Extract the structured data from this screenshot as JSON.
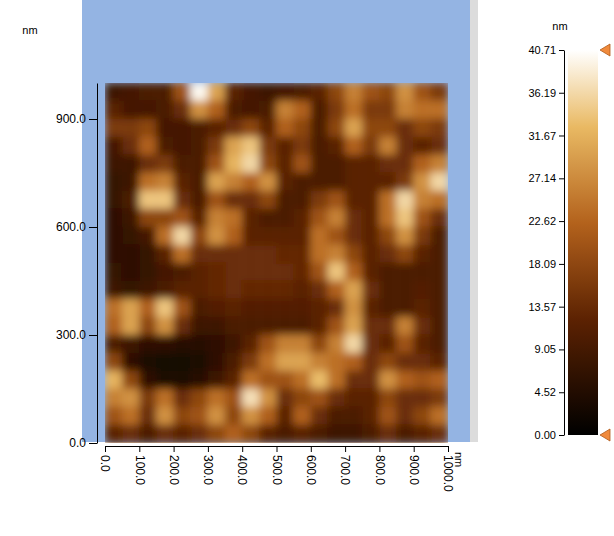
{
  "chart_data": {
    "type": "heatmap",
    "x_label": "nm",
    "y_label": "nm",
    "xlim": [
      0,
      1000
    ],
    "ylim": [
      0,
      1000
    ],
    "xticks": [
      {
        "value": 0,
        "label": "0.0"
      },
      {
        "value": 100,
        "label": "100.0"
      },
      {
        "value": 200,
        "label": "200.0"
      },
      {
        "value": 300,
        "label": "300.0"
      },
      {
        "value": 400,
        "label": "400.0"
      },
      {
        "value": 500,
        "label": "500.0"
      },
      {
        "value": 600,
        "label": "600.0"
      },
      {
        "value": 700,
        "label": "700.0"
      },
      {
        "value": 800,
        "label": "800.0"
      },
      {
        "value": 900,
        "label": "900.0"
      },
      {
        "value": 1000,
        "label": "1000.0"
      }
    ],
    "yticks": [
      {
        "value": 0,
        "label": "0.0"
      },
      {
        "value": 300,
        "label": "300.0"
      },
      {
        "value": 600,
        "label": "600.0"
      },
      {
        "value": 900,
        "label": "900.0"
      }
    ],
    "x": [
      25,
      75,
      125,
      175,
      225,
      275,
      325,
      375,
      425,
      475,
      525,
      575,
      625,
      675,
      725,
      775,
      825,
      875,
      925,
      975
    ],
    "y": [
      975,
      925,
      875,
      825,
      775,
      725,
      675,
      625,
      575,
      525,
      475,
      425,
      375,
      325,
      275,
      225,
      175,
      125,
      75,
      25
    ],
    "z": [
      [
        8,
        9,
        10,
        10,
        20,
        40,
        30,
        12,
        9,
        8,
        9,
        10,
        12,
        18,
        26,
        20,
        18,
        28,
        20,
        16
      ],
      [
        12,
        9,
        9,
        10,
        14,
        28,
        22,
        10,
        9,
        10,
        26,
        22,
        10,
        16,
        24,
        16,
        16,
        26,
        24,
        24
      ],
      [
        16,
        16,
        18,
        9,
        9,
        10,
        12,
        14,
        18,
        12,
        22,
        18,
        10,
        18,
        30,
        18,
        18,
        14,
        18,
        16
      ],
      [
        9,
        14,
        22,
        10,
        9,
        10,
        16,
        30,
        34,
        16,
        12,
        16,
        10,
        12,
        22,
        16,
        26,
        14,
        12,
        14
      ],
      [
        8,
        8,
        14,
        16,
        10,
        10,
        20,
        32,
        36,
        18,
        12,
        20,
        10,
        10,
        12,
        12,
        14,
        14,
        22,
        26
      ],
      [
        7,
        8,
        24,
        26,
        12,
        10,
        30,
        26,
        22,
        28,
        12,
        10,
        10,
        10,
        12,
        12,
        12,
        16,
        28,
        36
      ],
      [
        7,
        10,
        34,
        34,
        14,
        10,
        20,
        14,
        14,
        18,
        10,
        10,
        16,
        20,
        12,
        12,
        24,
        36,
        26,
        24
      ],
      [
        6,
        8,
        18,
        18,
        20,
        12,
        26,
        24,
        12,
        10,
        10,
        12,
        20,
        26,
        14,
        12,
        24,
        34,
        20,
        14
      ],
      [
        6,
        7,
        9,
        24,
        36,
        18,
        28,
        22,
        12,
        12,
        12,
        12,
        24,
        20,
        14,
        12,
        18,
        28,
        16,
        10
      ],
      [
        6,
        6,
        7,
        12,
        24,
        14,
        14,
        14,
        14,
        14,
        13,
        13,
        24,
        26,
        18,
        12,
        14,
        18,
        12,
        10
      ],
      [
        7,
        6,
        7,
        9,
        10,
        12,
        13,
        14,
        14,
        14,
        14,
        13,
        20,
        34,
        22,
        12,
        10,
        10,
        10,
        10
      ],
      [
        8,
        7,
        8,
        10,
        12,
        12,
        13,
        14,
        13,
        13,
        13,
        12,
        14,
        22,
        30,
        14,
        10,
        10,
        11,
        10
      ],
      [
        24,
        30,
        22,
        34,
        20,
        10,
        11,
        12,
        11,
        11,
        11,
        11,
        12,
        14,
        28,
        12,
        10,
        10,
        12,
        10
      ],
      [
        22,
        30,
        18,
        28,
        14,
        8,
        8,
        10,
        10,
        10,
        10,
        10,
        12,
        20,
        30,
        14,
        14,
        26,
        14,
        10
      ],
      [
        10,
        8,
        6,
        6,
        5,
        5,
        6,
        8,
        12,
        20,
        26,
        26,
        18,
        26,
        36,
        14,
        12,
        20,
        12,
        10
      ],
      [
        18,
        6,
        4,
        3,
        3,
        4,
        6,
        10,
        16,
        24,
        30,
        30,
        26,
        24,
        22,
        14,
        18,
        14,
        14,
        12
      ],
      [
        32,
        18,
        6,
        4,
        4,
        5,
        8,
        12,
        24,
        20,
        20,
        24,
        33,
        24,
        14,
        14,
        28,
        22,
        20,
        22
      ],
      [
        26,
        28,
        16,
        24,
        14,
        18,
        24,
        20,
        37,
        28,
        14,
        18,
        20,
        14,
        12,
        12,
        18,
        14,
        14,
        16
      ],
      [
        20,
        24,
        14,
        28,
        18,
        20,
        28,
        18,
        28,
        22,
        12,
        22,
        14,
        10,
        10,
        12,
        20,
        14,
        18,
        24
      ],
      [
        12,
        14,
        10,
        14,
        12,
        14,
        18,
        22,
        18,
        12,
        10,
        12,
        10,
        8,
        8,
        10,
        14,
        10,
        12,
        14
      ]
    ],
    "colorbar": {
      "label": "nm",
      "range": [
        0,
        40.71
      ],
      "ticks": [
        {
          "value": 0,
          "label": "0.00"
        },
        4.52,
        9.05,
        13.57,
        18.09,
        22.62,
        27.14,
        31.67,
        36.19,
        40.71
      ]
    }
  }
}
